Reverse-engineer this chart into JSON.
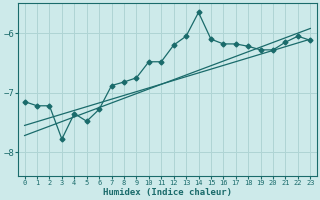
{
  "xlabel": "Humidex (Indice chaleur)",
  "ylabel": "",
  "bg_color": "#cdeaea",
  "line_color": "#1a6b6b",
  "grid_color": "#afd4d4",
  "x_data": [
    0,
    1,
    2,
    3,
    4,
    5,
    6,
    7,
    8,
    9,
    10,
    11,
    12,
    13,
    14,
    15,
    16,
    17,
    18,
    19,
    20,
    21,
    22,
    23
  ],
  "y_data": [
    -7.15,
    -7.22,
    -7.22,
    -7.78,
    -7.35,
    -7.48,
    -7.28,
    -6.88,
    -6.82,
    -6.75,
    -6.48,
    -6.48,
    -6.2,
    -6.05,
    -5.65,
    -6.1,
    -6.18,
    -6.18,
    -6.22,
    -6.28,
    -6.28,
    -6.15,
    -6.05,
    -6.12
  ],
  "xlim": [
    -0.5,
    23.5
  ],
  "ylim": [
    -8.4,
    -5.5
  ],
  "yticks": [
    -8,
    -7,
    -6
  ],
  "xticks": [
    0,
    1,
    2,
    3,
    4,
    5,
    6,
    7,
    8,
    9,
    10,
    11,
    12,
    13,
    14,
    15,
    16,
    17,
    18,
    19,
    20,
    21,
    22,
    23
  ],
  "line1_x": [
    0,
    23
  ],
  "line1_y": [
    -7.72,
    -5.92
  ],
  "line2_x": [
    0,
    23
  ],
  "line2_y": [
    -7.55,
    -6.1
  ]
}
